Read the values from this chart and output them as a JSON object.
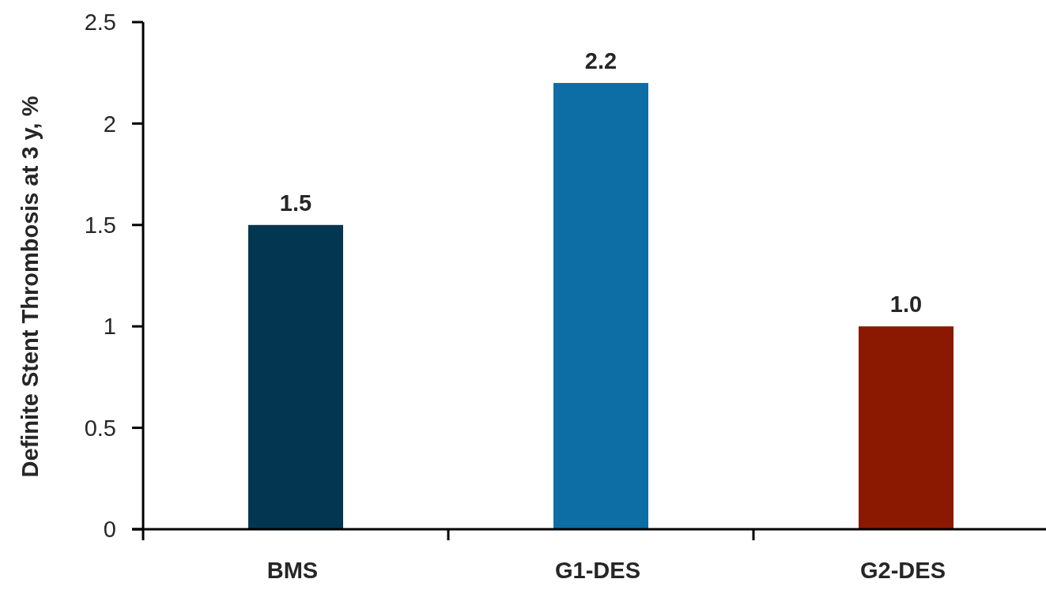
{
  "chart_data": {
    "type": "bar",
    "ylabel": "Definite Stent Thrombosis at 3 y, %",
    "categories": [
      "BMS",
      "G1-DES",
      "G2-DES"
    ],
    "values": [
      1.5,
      2.2,
      1.0
    ],
    "colors": [
      "#033651",
      "#0d6ea6",
      "#8b1800"
    ],
    "value_labels": [
      "1.5",
      "2.2",
      "1.0"
    ],
    "ylim": [
      0,
      2.5
    ],
    "yticks": [
      0,
      0.5,
      1,
      1.5,
      2,
      2.5
    ],
    "grid": false
  }
}
